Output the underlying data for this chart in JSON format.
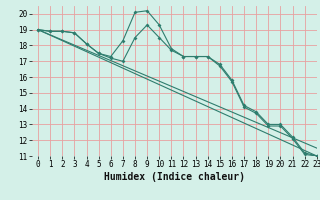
{
  "background_color": "#d4f0e8",
  "grid_color": "#e8a0a0",
  "line_color": "#2e7d6e",
  "xlabel": "Humidex (Indice chaleur)",
  "xlim": [
    -0.5,
    23
  ],
  "ylim": [
    11,
    20.5
  ],
  "xticks": [
    0,
    1,
    2,
    3,
    4,
    5,
    6,
    7,
    8,
    9,
    10,
    11,
    12,
    13,
    14,
    15,
    16,
    17,
    18,
    19,
    20,
    21,
    22,
    23
  ],
  "yticks": [
    11,
    12,
    13,
    14,
    15,
    16,
    17,
    18,
    19,
    20
  ],
  "lines": [
    {
      "x": [
        0,
        1,
        2,
        3,
        4,
        5,
        6,
        7,
        8,
        9,
        10,
        11,
        12,
        13,
        14,
        15,
        16,
        17,
        18,
        19,
        20,
        21,
        22,
        23
      ],
      "y": [
        19,
        18.9,
        18.9,
        18.8,
        18.1,
        17.5,
        17.3,
        18.3,
        20.1,
        20.2,
        19.3,
        17.8,
        17.3,
        17.3,
        17.3,
        16.8,
        15.8,
        14.2,
        13.8,
        13.0,
        13.0,
        12.2,
        11.2,
        11.0
      ],
      "marker": true
    },
    {
      "x": [
        0,
        1,
        2,
        3,
        4,
        5,
        6,
        7,
        8,
        9,
        10,
        11,
        12,
        13,
        14,
        15,
        16,
        17,
        18,
        19,
        20,
        21,
        22,
        23
      ],
      "y": [
        19,
        18.9,
        18.9,
        18.8,
        18.1,
        17.5,
        17.2,
        17.0,
        18.5,
        19.3,
        18.5,
        17.7,
        17.3,
        17.3,
        17.3,
        16.7,
        15.7,
        14.1,
        13.7,
        12.9,
        12.9,
        12.1,
        11.1,
        11.0
      ],
      "marker": true
    },
    {
      "x": [
        0,
        23
      ],
      "y": [
        19,
        11.5
      ],
      "marker": false
    },
    {
      "x": [
        0,
        23
      ],
      "y": [
        19,
        11.0
      ],
      "marker": false
    }
  ],
  "tick_fontsize": 5.5,
  "xlabel_fontsize": 7
}
